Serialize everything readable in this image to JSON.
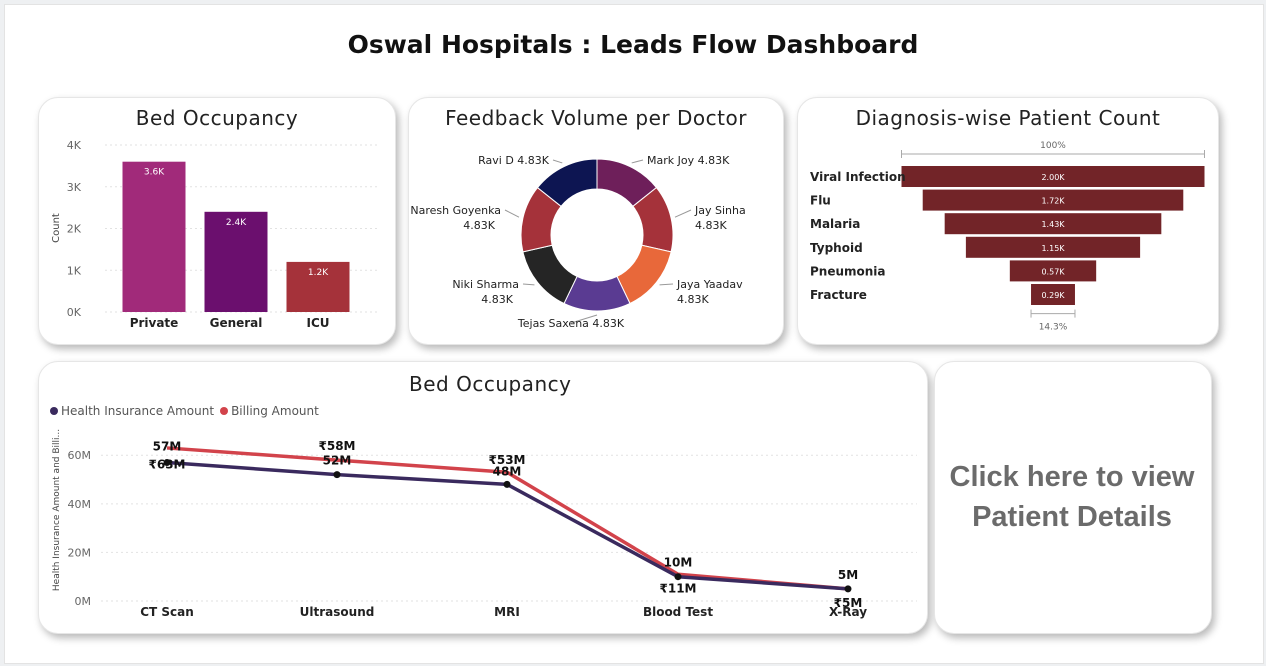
{
  "dashboard": {
    "title": "Oswal Hospitals : Leads Flow Dashboard"
  },
  "bed_chart": {
    "title": "Bed Occupancy",
    "ylabel": "Count",
    "ticks": [
      "4K",
      "3K",
      "2K",
      "1K",
      "0K"
    ],
    "categories": [
      "Private",
      "General",
      "ICU"
    ],
    "labels": [
      "3.6K",
      "2.4K",
      "1.2K"
    ],
    "colors": [
      "#a12a7a",
      "#6b0f6e",
      "#a5323a"
    ]
  },
  "feedback_chart": {
    "title": "Feedback Volume per Doctor",
    "slices": [
      {
        "name": "Mark Joy",
        "value": "4.83K",
        "color": "#6e1f5a"
      },
      {
        "name": "Jay Sinha",
        "value": "4.83K",
        "color": "#a5323a"
      },
      {
        "name": "Jaya Yaadav",
        "value": "4.83K",
        "color": "#e8683a"
      },
      {
        "name": "Tejas Saxena",
        "value": "4.83K",
        "color": "#5a3b92"
      },
      {
        "name": "Niki Sharma",
        "value": "4.83K",
        "color": "#252525"
      },
      {
        "name": "Naresh Goyenka",
        "value": "4.83K",
        "color": "#a5323a"
      },
      {
        "name": "Ravi D",
        "value": "4.83K",
        "color": "#0d1552"
      }
    ]
  },
  "diagnosis_chart": {
    "title": "Diagnosis-wise Patient Count",
    "top_label": "100%",
    "bottom_label": "14.3%",
    "categories": [
      "Viral Infection",
      "Flu",
      "Malaria",
      "Typhoid",
      "Pneumonia",
      "Fracture"
    ],
    "labels": [
      "2.00K",
      "1.72K",
      "1.43K",
      "1.15K",
      "0.57K",
      "0.29K"
    ],
    "color": "#722428"
  },
  "billing_chart": {
    "title": "Bed Occupancy",
    "legend": [
      "Health Insurance Amount",
      "Billing Amount"
    ],
    "ylabel": "Health Insurance Amount and Billi...",
    "ticks": [
      "60M",
      "40M",
      "20M",
      "0M"
    ],
    "categories": [
      "CT Scan",
      "Ultrasound",
      "MRI",
      "Blood Test",
      "X-Ray"
    ],
    "insurance_labels": [
      "57M",
      "52M",
      "48M",
      "10M",
      "5M"
    ],
    "billing_labels": [
      "₹63M",
      "₹58M",
      "₹53M",
      "₹11M",
      "₹5M"
    ],
    "colors": {
      "insurance": "#3a2a5e",
      "billing": "#d2434b"
    }
  },
  "chart_data": [
    {
      "type": "bar",
      "title": "Bed Occupancy",
      "categories": [
        "Private",
        "General",
        "ICU"
      ],
      "values": [
        3600,
        2400,
        1200
      ],
      "ylabel": "Count",
      "ylim": [
        0,
        4000
      ],
      "grid": true
    },
    {
      "type": "pie",
      "title": "Feedback Volume per Doctor",
      "categories": [
        "Mark Joy",
        "Jay Sinha",
        "Jaya Yaadav",
        "Tejas Saxena",
        "Niki Sharma",
        "Naresh Goyenka",
        "Ravi D"
      ],
      "values": [
        4830,
        4830,
        4830,
        4830,
        4830,
        4830,
        4830
      ]
    },
    {
      "type": "bar",
      "title": "Diagnosis-wise Patient Count",
      "categories": [
        "Viral Infection",
        "Flu",
        "Malaria",
        "Typhoid",
        "Pneumonia",
        "Fracture"
      ],
      "values": [
        2000,
        1720,
        1430,
        1150,
        570,
        290
      ]
    },
    {
      "type": "line",
      "title": "Bed Occupancy",
      "categories": [
        "CT Scan",
        "Ultrasound",
        "MRI",
        "Blood Test",
        "X-Ray"
      ],
      "series": [
        {
          "name": "Health Insurance Amount",
          "values": [
            57,
            52,
            48,
            10,
            5
          ]
        },
        {
          "name": "Billing Amount",
          "values": [
            63,
            58,
            53,
            11,
            5
          ]
        }
      ],
      "ylabel": "Health Insurance Amount and Billi...",
      "ylim": [
        0,
        70
      ],
      "grid": true,
      "legend": "top-left"
    }
  ],
  "cta": {
    "line1": "Click here to view",
    "line2": "Patient Details"
  }
}
